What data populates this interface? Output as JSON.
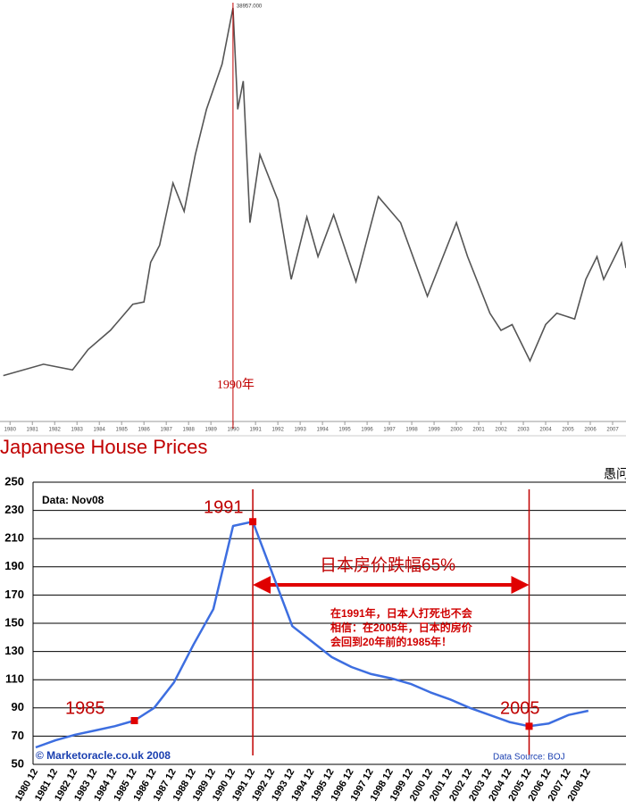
{
  "chart_data": [
    {
      "type": "line",
      "annotations": [
        "38957.000",
        "1990年"
      ],
      "x": [
        1979.7,
        1981.5,
        1982.8,
        1983.5,
        1984.5,
        1985.5,
        1986.0,
        1986.3,
        1986.7,
        1987.3,
        1987.8,
        1988.3,
        1988.8,
        1989.5,
        1989.99,
        1990.2,
        1990.45,
        1990.75,
        1991.2,
        1992.0,
        1992.6,
        1993.3,
        1993.8,
        1994.5,
        1995.5,
        1996.5,
        1997.5,
        1998.7,
        2000.0,
        2000.5,
        2001.5,
        2002.0,
        2002.5,
        2003.3,
        2004.0,
        2004.5,
        2005.3,
        2005.8,
        2006.3,
        2006.6,
        2007.4,
        2007.6
      ],
      "values": [
        6500,
        7500,
        7000,
        8800,
        10500,
        12800,
        13000,
        16500,
        18000,
        23500,
        21000,
        26000,
        30000,
        34000,
        38957,
        30000,
        32500,
        20000,
        26000,
        22000,
        15000,
        20500,
        17000,
        20700,
        14800,
        22300,
        20000,
        13500,
        20000,
        17000,
        12000,
        10500,
        11000,
        7800,
        11000,
        12000,
        11500,
        15000,
        17000,
        15000,
        18200,
        16000
      ],
      "color": "#555555",
      "xlim": [
        1979.55,
        2007.6
      ],
      "ylim": [
        3000,
        39500
      ],
      "xticks": [
        1980,
        1981,
        1982,
        1983,
        1984,
        1985,
        1986,
        1987,
        1988,
        1989,
        1990,
        1991,
        1992,
        1993,
        1994,
        1995,
        1996,
        1997,
        1998,
        1999,
        2000,
        2001,
        2002,
        2003,
        2004,
        2005,
        2006,
        2007
      ]
    },
    {
      "type": "line",
      "title": "Japanese House Prices",
      "annotations": [
        "Data: Nov08",
        "1991",
        "1985",
        "2005",
        "日本房价跌幅65%",
        "在1991年，日本人打死也不会",
        "相信：在2005年，日本的房价",
        "会回到20年前的1985年！",
        "© Marketoracle.co.uk 2008",
        "Data Source: BOJ",
        "愚问"
      ],
      "categories": [
        "1980 12",
        "1981 12",
        "1982 12",
        "1983 12",
        "1984 12",
        "1985 12",
        "1986 12",
        "1987 12",
        "1988 12",
        "1989 12",
        "1990 12",
        "1991 12",
        "1992 12",
        "1993 12",
        "1994 12",
        "1995 12",
        "1996 12",
        "1997 12",
        "1998 12",
        "1999 12",
        "2000 12",
        "2001 12",
        "2002 12",
        "2003 12",
        "2004 12",
        "2005 12",
        "2006 12",
        "2007 12",
        "2008 12"
      ],
      "values": [
        62,
        67,
        71,
        74,
        77,
        81,
        90,
        108,
        135,
        160,
        219,
        222,
        185,
        148,
        137,
        126,
        119,
        114,
        111,
        107,
        101,
        96,
        90,
        85,
        80,
        77,
        79,
        85,
        88
      ],
      "color": "#3d6ee0",
      "ylim": [
        50,
        250
      ],
      "yticks": [
        50,
        70,
        90,
        110,
        130,
        150,
        170,
        190,
        210,
        230,
        250
      ],
      "grid": true
    }
  ]
}
